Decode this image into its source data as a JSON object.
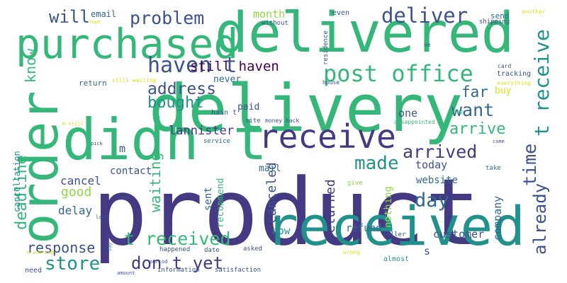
{
  "palette": {
    "purple": "#443983",
    "indigo": "#3b528b",
    "blue": "#31688e",
    "teal": "#21918c",
    "green": "#35b779",
    "lime": "#90d743",
    "yellow": "#d8e219",
    "dark": "#440154"
  },
  "words": [
    {
      "text": "product",
      "color": "purple"
    },
    {
      "text": "delivery",
      "color": "green"
    },
    {
      "text": "delivered",
      "color": "green"
    },
    {
      "text": "purchased",
      "color": "green"
    },
    {
      "text": "received",
      "color": "teal"
    },
    {
      "text": "didn t",
      "color": "green"
    },
    {
      "text": "order",
      "color": "green"
    },
    {
      "text": "receive",
      "color": "purple"
    },
    {
      "text": "post office",
      "color": "green"
    },
    {
      "text": "haven t",
      "color": "indigo"
    },
    {
      "text": "deliver",
      "color": "indigo"
    },
    {
      "text": "problem",
      "color": "indigo"
    },
    {
      "text": "will",
      "color": "indigo"
    },
    {
      "text": "address",
      "color": "indigo"
    },
    {
      "text": "bought",
      "color": "teal"
    },
    {
      "text": "know",
      "color": "green"
    },
    {
      "text": "still haven",
      "color": "dark"
    },
    {
      "text": "arrived",
      "color": "purple"
    },
    {
      "text": "arrive",
      "color": "green"
    },
    {
      "text": "want",
      "color": "blue"
    },
    {
      "text": "far",
      "color": "blue"
    },
    {
      "text": "t receive",
      "color": "teal"
    },
    {
      "text": "made",
      "color": "teal"
    },
    {
      "text": "day",
      "color": "blue"
    },
    {
      "text": "time",
      "color": "indigo"
    },
    {
      "text": "already",
      "color": "indigo"
    },
    {
      "text": "t received",
      "color": "green"
    },
    {
      "text": "don t yet",
      "color": "purple"
    },
    {
      "text": "store",
      "color": "teal"
    },
    {
      "text": "response",
      "color": "indigo"
    },
    {
      "text": "deadline",
      "color": "green"
    },
    {
      "text": "waiting",
      "color": "green"
    },
    {
      "text": "canceled",
      "color": "indigo"
    },
    {
      "text": "returned",
      "color": "purple"
    },
    {
      "text": "lannister",
      "color": "purple"
    },
    {
      "text": "cancel",
      "color": "indigo"
    },
    {
      "text": "good",
      "color": "lime"
    },
    {
      "text": "delay",
      "color": "blue"
    },
    {
      "text": "contact",
      "color": "indigo"
    },
    {
      "text": "today",
      "color": "indigo"
    },
    {
      "text": "website",
      "color": "blue"
    },
    {
      "text": "company",
      "color": "blue"
    },
    {
      "text": "nothing",
      "color": "lime"
    },
    {
      "text": "refund",
      "color": "blue"
    },
    {
      "text": "customer",
      "color": "indigo"
    },
    {
      "text": "now",
      "color": "teal"
    },
    {
      "text": "recommend",
      "color": "green"
    },
    {
      "text": "sent",
      "color": "blue"
    },
    {
      "text": "mail",
      "color": "blue"
    },
    {
      "text": "month",
      "color": "lime"
    },
    {
      "text": "email",
      "color": "blue"
    },
    {
      "text": "buy",
      "color": "yellow"
    },
    {
      "text": "one",
      "color": "indigo"
    },
    {
      "text": "paid",
      "color": "indigo"
    },
    {
      "text": "never",
      "color": "blue"
    },
    {
      "text": "m",
      "color": "indigo"
    },
    {
      "text": "s",
      "color": "indigo"
    },
    {
      "text": "return",
      "color": "blue"
    },
    {
      "text": "cancellation",
      "color": "teal"
    },
    {
      "text": "send",
      "color": "blue"
    },
    {
      "text": "tracking",
      "color": "indigo"
    },
    {
      "text": "even",
      "color": "indigo"
    },
    {
      "text": "without",
      "color": "indigo"
    },
    {
      "text": "residence",
      "color": "indigo"
    },
    {
      "text": "shipping",
      "color": "indigo"
    },
    {
      "text": "another",
      "color": "yellow"
    },
    {
      "text": "hope",
      "color": "yellow"
    },
    {
      "text": "ve",
      "color": "indigo"
    },
    {
      "text": "card",
      "color": "indigo"
    },
    {
      "text": "still waiting",
      "color": "yellow"
    },
    {
      "text": "everything",
      "color": "yellow"
    },
    {
      "text": "house",
      "color": "indigo"
    },
    {
      "text": "going",
      "color": "green"
    },
    {
      "text": "hasn t",
      "color": "indigo"
    },
    {
      "text": "site",
      "color": "indigo"
    },
    {
      "text": "money back",
      "color": "indigo"
    },
    {
      "text": "disappointed",
      "color": "green"
    },
    {
      "text": "m still",
      "color": "yellow"
    },
    {
      "text": "pick",
      "color": "indigo"
    },
    {
      "text": "service",
      "color": "blue"
    },
    {
      "text": "come",
      "color": "indigo"
    },
    {
      "text": "take",
      "color": "blue"
    },
    {
      "text": "give",
      "color": "lime"
    },
    {
      "text": "bad",
      "color": "indigo"
    },
    {
      "text": "period",
      "color": "indigo"
    },
    {
      "text": "lack",
      "color": "indigo"
    },
    {
      "text": "seller",
      "color": "indigo"
    },
    {
      "text": "asked",
      "color": "indigo"
    },
    {
      "text": "happened",
      "color": "indigo"
    },
    {
      "text": "date",
      "color": "indigo"
    },
    {
      "text": "m waiting",
      "color": "yellow"
    },
    {
      "text": "wrong",
      "color": "yellow"
    },
    {
      "text": "almost",
      "color": "teal"
    },
    {
      "text": "need",
      "color": "indigo"
    },
    {
      "text": "amount",
      "color": "indigo"
    },
    {
      "text": "information",
      "color": "indigo"
    },
    {
      "text": "satisfaction",
      "color": "indigo"
    },
    {
      "text": "say",
      "color": "teal"
    }
  ]
}
